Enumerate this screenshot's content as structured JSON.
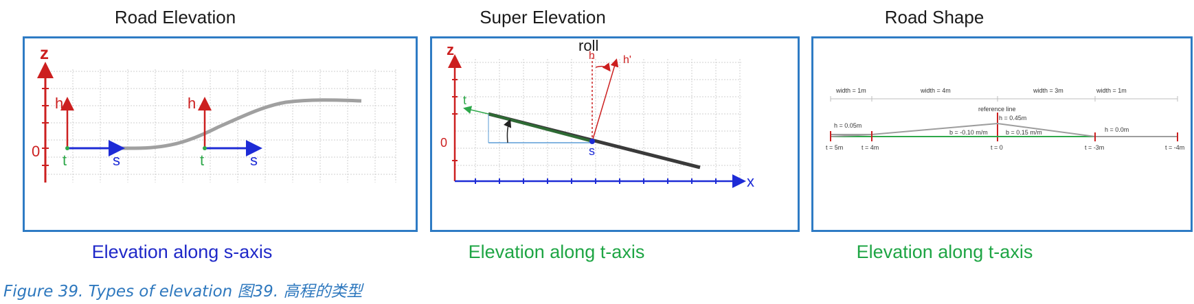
{
  "panels": [
    {
      "title": "Road Elevation",
      "caption": "Elevation along s-axis",
      "labels": {
        "z": "z",
        "zero": "0",
        "h1": "h",
        "t1": "t",
        "s1": "s",
        "h2": "h",
        "t2": "t",
        "s2": "s"
      }
    },
    {
      "title": "Super Elevation",
      "caption": "Elevation along t-axis",
      "labels": {
        "z": "z",
        "roll": "roll",
        "h": "h",
        "hprime": "h'",
        "t": "t",
        "zero": "0",
        "s": "s",
        "x": "x"
      }
    },
    {
      "title": "Road Shape",
      "caption": "Elevation along t-axis",
      "labels": {
        "width1": "width = 1m",
        "width2": "width = 4m",
        "width3": "width = 3m",
        "width4": "width = 1m",
        "reference_line": "reference line",
        "h_ref": "h = 0.45m",
        "h_left": "h = 0.05m",
        "h_right": "h = 0.0m",
        "b_left": "b = -0.10 m/m",
        "b_right": "b = 0.15 m/m",
        "t_5m": "t = 5m",
        "t_4m": "t = 4m",
        "t_0": "t = 0",
        "t_m3m": "t = -3m",
        "t_m4m": "t = -4m"
      }
    }
  ],
  "figure_caption": "Figure 39. Types of elevation 图39. 高程的类型",
  "colors": {
    "axis_red": "#cc1f1f",
    "axis_blue": "#1d2bd6",
    "green": "#2ea84a",
    "road_grey": "#9d9d9d",
    "frame_blue": "#2e7bc4"
  }
}
